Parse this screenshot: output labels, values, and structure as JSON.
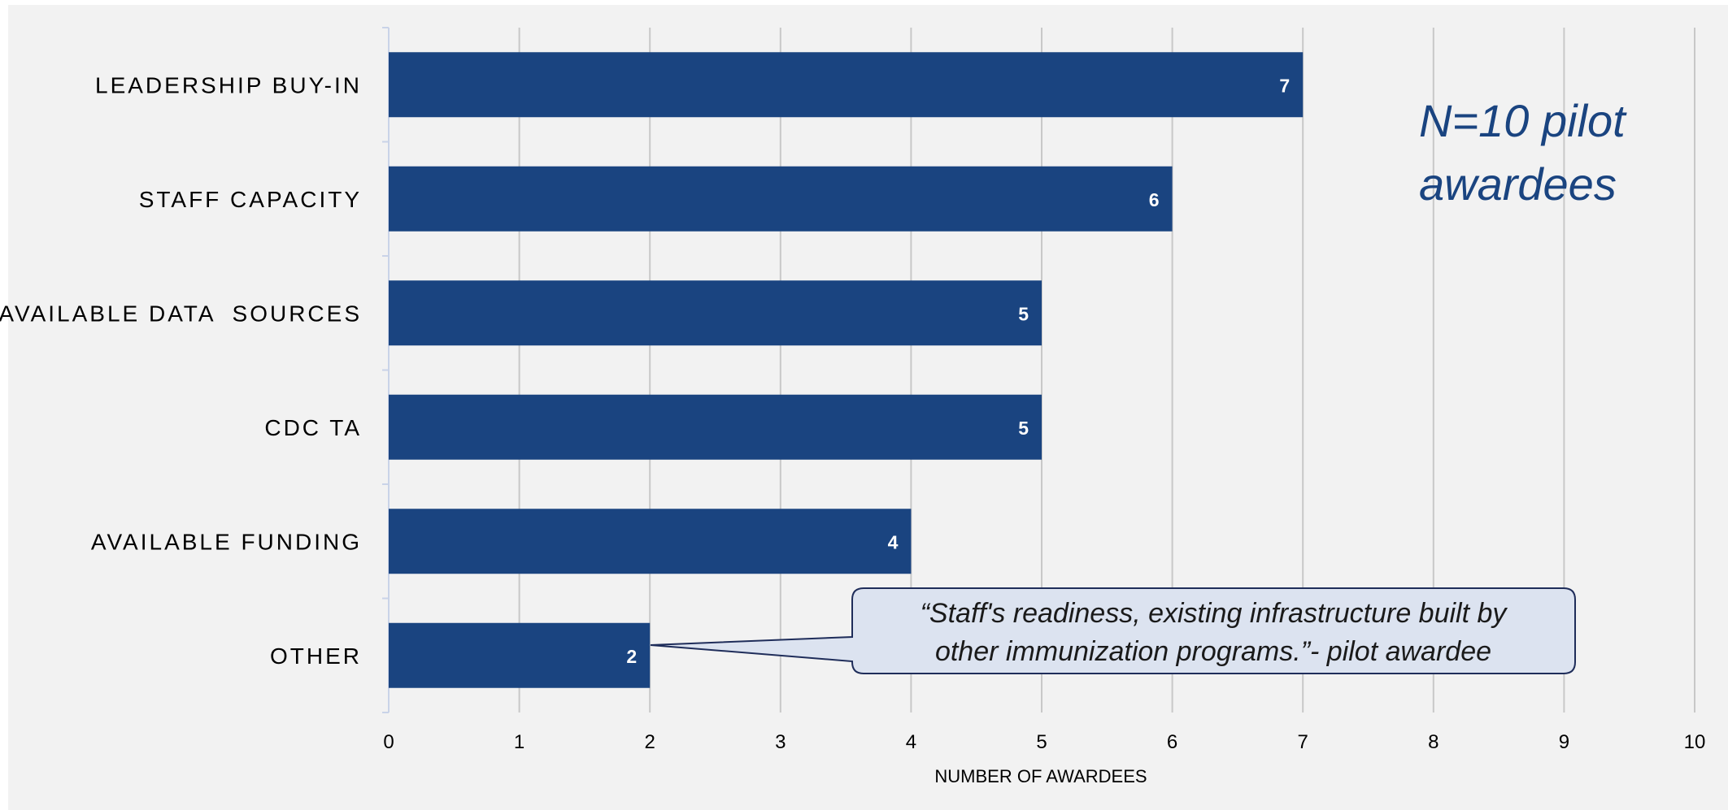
{
  "chart_data": {
    "type": "bar",
    "orientation": "horizontal",
    "categories": [
      "LEADERSHIP BUY-IN",
      "STAFF CAPACITY",
      "AVAILABLE DATA  SOURCES",
      "CDC TA",
      "AVAILABLE FUNDING",
      "OTHER"
    ],
    "values": [
      7,
      6,
      5,
      5,
      4,
      2
    ],
    "xlabel": "NUMBER OF AWARDEES",
    "xlim": [
      0,
      10
    ],
    "xticks": [
      "0",
      "1",
      "2",
      "3",
      "4",
      "5",
      "6",
      "7",
      "8",
      "9",
      "10"
    ],
    "grid": "vertical",
    "bar_color": "#1a4480",
    "annotation": [
      "N=10 pilot",
      "awardees"
    ],
    "callout": {
      "lines": [
        "“Staff's readiness, existing infrastructure built by",
        "other immunization programs.”- pilot awardee"
      ],
      "category": "OTHER"
    }
  }
}
